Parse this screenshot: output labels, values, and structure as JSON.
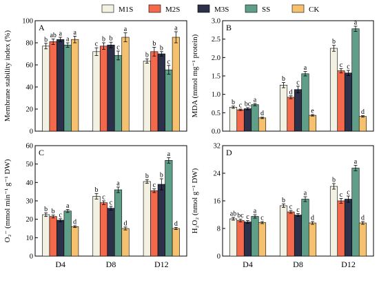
{
  "legend": [
    {
      "name": "M1S",
      "color": "#f3f1e1"
    },
    {
      "name": "M2S",
      "color": "#f4694b"
    },
    {
      "name": "M3S",
      "color": "#2c3048"
    },
    {
      "name": "SS",
      "color": "#5f9f8a"
    },
    {
      "name": "CK",
      "color": "#f6c16e"
    }
  ],
  "chart_data": [
    {
      "type": "bar",
      "panel": "A",
      "ylabel": "Membrane stability index (%)",
      "categories": [
        "D4",
        "D8",
        "D12"
      ],
      "ylim": [
        0,
        100
      ],
      "yticks": [
        0,
        20,
        40,
        60,
        80,
        100
      ],
      "tick_labels": [
        "0",
        "20",
        "40",
        "60",
        "80",
        "100"
      ],
      "series": [
        {
          "name": "M1S",
          "values": [
            77,
            72,
            63.5
          ],
          "errors": [
            2.5,
            3.5,
            2
          ],
          "letters": [
            "b",
            "c",
            "b"
          ]
        },
        {
          "name": "M2S",
          "values": [
            81,
            77,
            72
          ],
          "errors": [
            2.5,
            3,
            4
          ],
          "letters": [
            "ab",
            "b",
            "b"
          ]
        },
        {
          "name": "M3S",
          "values": [
            83,
            78,
            70
          ],
          "errors": [
            2,
            2.5,
            2
          ],
          "letters": [
            "a",
            "b",
            "b"
          ]
        },
        {
          "name": "SS",
          "values": [
            78,
            68.5,
            55.5
          ],
          "errors": [
            2,
            4,
            4
          ],
          "letters": [
            "a",
            "c",
            "c"
          ]
        },
        {
          "name": "CK",
          "values": [
            83,
            85,
            85
          ],
          "errors": [
            3,
            4,
            5
          ],
          "letters": [
            "a",
            "a",
            "a"
          ]
        }
      ]
    },
    {
      "type": "bar",
      "panel": "B",
      "ylabel": "MDA (mmol mg⁻¹ protein)",
      "categories": [
        "D4",
        "D8",
        "D12"
      ],
      "ylim": [
        0,
        3.0
      ],
      "yticks": [
        0,
        0.5,
        1.0,
        1.5,
        2.0,
        2.5,
        3.0
      ],
      "tick_labels": [
        "0.0",
        "0.5",
        "1.0",
        "1.5",
        "2.0",
        "2.5",
        "3.0"
      ],
      "series": [
        {
          "name": "M1S",
          "values": [
            0.65,
            1.25,
            2.25
          ],
          "errors": [
            0.03,
            0.07,
            0.08
          ],
          "letters": [
            "b",
            "b",
            "b"
          ]
        },
        {
          "name": "M2S",
          "values": [
            0.58,
            0.92,
            1.64
          ],
          "errors": [
            0.02,
            0.04,
            0.06
          ],
          "letters": [
            "c",
            "d",
            "c"
          ]
        },
        {
          "name": "M3S",
          "values": [
            0.61,
            1.13,
            1.58
          ],
          "errors": [
            0.03,
            0.09,
            0.07
          ],
          "letters": [
            "bc",
            "c",
            "c"
          ]
        },
        {
          "name": "SS",
          "values": [
            0.72,
            1.56,
            2.78
          ],
          "errors": [
            0.03,
            0.06,
            0.07
          ],
          "letters": [
            "a",
            "a",
            "a"
          ]
        },
        {
          "name": "CK",
          "values": [
            0.36,
            0.43,
            0.4
          ],
          "errors": [
            0.02,
            0.02,
            0.02
          ],
          "letters": [
            "d",
            "e",
            "d"
          ]
        }
      ]
    },
    {
      "type": "bar",
      "panel": "C",
      "ylabel": "O₂⁻ (mmol min⁻¹ g⁻¹ DW)",
      "categories": [
        "D4",
        "D8",
        "D12"
      ],
      "ylim": [
        0,
        60
      ],
      "yticks": [
        0,
        10,
        20,
        30,
        40,
        50,
        60
      ],
      "tick_labels": [
        "0",
        "10",
        "20",
        "30",
        "40",
        "50",
        "60"
      ],
      "series": [
        {
          "name": "M1S",
          "values": [
            22.5,
            32.5,
            40.5
          ],
          "errors": [
            1,
            1.5,
            1
          ],
          "letters": [
            "b",
            "b",
            "b"
          ]
        },
        {
          "name": "M2S",
          "values": [
            21.5,
            29,
            35.5
          ],
          "errors": [
            0.8,
            1,
            1
          ],
          "letters": [
            "b",
            "c",
            "c"
          ]
        },
        {
          "name": "M3S",
          "values": [
            19.5,
            26,
            39
          ],
          "errors": [
            0.8,
            1,
            3
          ],
          "letters": [
            "c",
            "c",
            "b"
          ]
        },
        {
          "name": "SS",
          "values": [
            24.5,
            36,
            52
          ],
          "errors": [
            0.8,
            1.5,
            1.5
          ],
          "letters": [
            "a",
            "a",
            "a"
          ]
        },
        {
          "name": "CK",
          "values": [
            16,
            15,
            15
          ],
          "errors": [
            0.5,
            0.8,
            0.6
          ],
          "letters": [
            "d",
            "d",
            "d"
          ]
        }
      ]
    },
    {
      "type": "bar",
      "panel": "D",
      "ylabel": "H₂O₂ (nmol g⁻¹ DW)",
      "categories": [
        "D4",
        "D8",
        "D12"
      ],
      "ylim": [
        0,
        32
      ],
      "yticks": [
        0,
        8,
        16,
        24,
        32
      ],
      "tick_labels": [
        "0",
        "8",
        "16",
        "24",
        "32"
      ],
      "series": [
        {
          "name": "M1S",
          "values": [
            10.8,
            14.6,
            20.2
          ],
          "errors": [
            0.4,
            0.5,
            0.8
          ],
          "letters": [
            "ab",
            "b",
            "b"
          ]
        },
        {
          "name": "M2S",
          "values": [
            10.3,
            12.8,
            16
          ],
          "errors": [
            0.4,
            0.4,
            0.7
          ],
          "letters": [
            "bc",
            "c",
            "c"
          ]
        },
        {
          "name": "M3S",
          "values": [
            9.9,
            11.9,
            16.5
          ],
          "errors": [
            0.4,
            0.4,
            0.9
          ],
          "letters": [
            "c",
            "c",
            "c"
          ]
        },
        {
          "name": "SS",
          "values": [
            11.5,
            16.5,
            25.5
          ],
          "errors": [
            0.5,
            0.7,
            0.8
          ],
          "letters": [
            "a",
            "a",
            "a"
          ]
        },
        {
          "name": "CK",
          "values": [
            9.7,
            9.6,
            9.6
          ],
          "errors": [
            0.3,
            0.4,
            0.4
          ],
          "letters": [
            "c",
            "d",
            "d"
          ]
        }
      ]
    }
  ]
}
